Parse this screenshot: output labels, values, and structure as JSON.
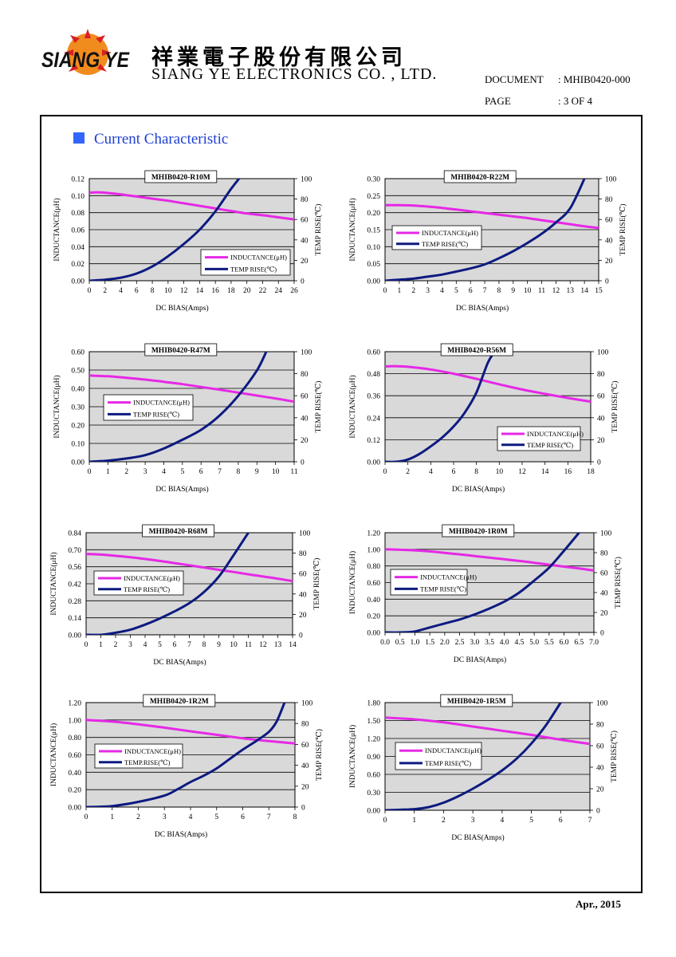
{
  "header": {
    "logo_text": "SIANG YE",
    "company_cn": "祥業電子股份有限公司",
    "company_en": "SIANG YE ELECTRONICS CO. , LTD.",
    "document_label": "DOCUMENT",
    "document_value": ": MHIB0420-000",
    "page_label": "PAGE",
    "page_value": ": 3 OF 4"
  },
  "section": {
    "title": "Current Characteristic"
  },
  "footer": {
    "date": "Apr., 2015"
  },
  "colors": {
    "inductance": "#e628e6",
    "temp_rise": "#0d1a80",
    "accent": "#3366ff"
  },
  "chart_data": [
    {
      "type": "line",
      "title": "MHIB0420-R10M",
      "xlabel": "DC BIAS(Amps)",
      "ylabel": "INDUCTANCE(μH)",
      "y2label": "TEMP RISE(℃)",
      "xlim": [
        0,
        26
      ],
      "ylim": [
        0,
        0.12
      ],
      "y2lim": [
        0,
        100
      ],
      "xticks": [
        "0",
        "2",
        "4",
        "6",
        "8",
        "10",
        "12",
        "14",
        "16",
        "18",
        "20",
        "22",
        "24",
        "26"
      ],
      "yticks": [
        "0.00",
        "0.02",
        "0.04",
        "0.06",
        "0.08",
        "0.10",
        "0.12"
      ],
      "y2ticks": [
        "0",
        "20",
        "40",
        "60",
        "80",
        "100"
      ],
      "legend": {
        "position": "bottom-right",
        "inductance": "INDUCTANCE(μH)",
        "temp": "TEMP RISE(℃)"
      },
      "series": [
        {
          "name": "INDUCTANCE(μH)",
          "axis": "y",
          "x": [
            0,
            1,
            2,
            4,
            6,
            8,
            10,
            12,
            14,
            16,
            18,
            20,
            22,
            24,
            26
          ],
          "values": [
            0.1035,
            0.104,
            0.1035,
            0.1015,
            0.099,
            0.0965,
            0.094,
            0.091,
            0.088,
            0.085,
            0.082,
            0.079,
            0.077,
            0.0745,
            0.072
          ]
        },
        {
          "name": "TEMP RISE(℃)",
          "axis": "y2",
          "x": [
            0,
            2,
            4,
            6,
            8,
            10,
            12,
            14,
            16,
            18,
            19
          ],
          "values": [
            0,
            1,
            3,
            7,
            14,
            24,
            36,
            50,
            68,
            90,
            100
          ]
        }
      ]
    },
    {
      "type": "line",
      "title": "MHIB0420-R22M",
      "xlabel": "DC BIAS(Amps)",
      "ylabel": "INDUCTANCE(μH)",
      "y2label": "TEMP RISE(℃)",
      "xlim": [
        0,
        15
      ],
      "ylim": [
        0,
        0.3
      ],
      "y2lim": [
        0,
        100
      ],
      "xticks": [
        "0",
        "1",
        "2",
        "3",
        "4",
        "5",
        "6",
        "7",
        "8",
        "9",
        "10",
        "11",
        "12",
        "13",
        "14",
        "15"
      ],
      "yticks": [
        "0.00",
        "0.05",
        "0.10",
        "0.15",
        "0.20",
        "0.25",
        "0.30"
      ],
      "y2ticks": [
        "0",
        "20",
        "40",
        "60",
        "80",
        "100"
      ],
      "legend": {
        "position": "middle-left",
        "inductance": "INDUCTANCE(μH)",
        "temp": "TEMP RISE(℃)"
      },
      "series": [
        {
          "name": "INDUCTANCE(μH)",
          "axis": "y",
          "x": [
            0,
            1,
            2,
            3,
            4,
            5,
            6,
            7,
            8,
            9,
            10,
            11,
            12,
            13,
            14,
            15
          ],
          "values": [
            0.222,
            0.222,
            0.221,
            0.218,
            0.214,
            0.209,
            0.204,
            0.199,
            0.194,
            0.189,
            0.184,
            0.178,
            0.172,
            0.166,
            0.16,
            0.155
          ]
        },
        {
          "name": "TEMP RISE(℃)",
          "axis": "y2",
          "x": [
            0,
            1,
            2,
            3,
            4,
            5,
            6,
            7,
            8,
            9,
            10,
            11,
            12,
            13,
            14
          ],
          "values": [
            0,
            1,
            2,
            4,
            6,
            9,
            12,
            16,
            22,
            29,
            37,
            46,
            57,
            71,
            100
          ]
        }
      ]
    },
    {
      "type": "line",
      "title": "MHIB0420-R47M",
      "xlabel": "DC BIAS(Amps)",
      "ylabel": "INDUCTANCE(μH)",
      "y2label": "TEMP RISE(℃)",
      "xlim": [
        0,
        11
      ],
      "ylim": [
        0,
        0.6
      ],
      "y2lim": [
        0,
        100
      ],
      "xticks": [
        "0",
        "1",
        "2",
        "3",
        "4",
        "5",
        "6",
        "7",
        "8",
        "9",
        "10",
        "11"
      ],
      "yticks": [
        "0.00",
        "0.10",
        "0.20",
        "0.30",
        "0.40",
        "0.50",
        "0.60"
      ],
      "y2ticks": [
        "0",
        "20",
        "40",
        "60",
        "80",
        "100"
      ],
      "legend": {
        "position": "middle-left",
        "inductance": "INDUCTANCE(μH)",
        "temp": "TEMP RISE(℃)"
      },
      "series": [
        {
          "name": "INDUCTANCE(μH)",
          "axis": "y",
          "x": [
            0,
            1,
            2,
            3,
            4,
            5,
            6,
            7,
            8,
            9,
            10,
            11
          ],
          "values": [
            0.47,
            0.466,
            0.458,
            0.448,
            0.436,
            0.423,
            0.408,
            0.393,
            0.377,
            0.361,
            0.345,
            0.328
          ]
        },
        {
          "name": "TEMP RISE(℃)",
          "axis": "y2",
          "x": [
            0,
            1,
            2,
            3,
            4,
            5,
            6,
            7,
            8,
            9,
            9.5
          ],
          "values": [
            0,
            1,
            3,
            6,
            12,
            20,
            29,
            42,
            60,
            83,
            100
          ]
        }
      ]
    },
    {
      "type": "line",
      "title": "MHIB0420-R56M",
      "xlabel": "DC BIAS(Amps)",
      "ylabel": "INDUCTANCE(μH)",
      "y2label": "TEMP RISE(℃)",
      "xlim": [
        0,
        18
      ],
      "ylim": [
        0,
        0.6
      ],
      "y2lim": [
        0,
        100
      ],
      "xticks": [
        "0",
        "2",
        "4",
        "6",
        "8",
        "10",
        "12",
        "14",
        "16",
        "18"
      ],
      "yticks": [
        "0.00",
        "0.12",
        "0.24",
        "0.36",
        "0.48",
        "0.60"
      ],
      "y2ticks": [
        "0",
        "20",
        "40",
        "60",
        "80",
        "100"
      ],
      "legend": {
        "position": "bottom-right",
        "inductance": "INDUCTANCE(μH)",
        "temp": "TEMP RISE(℃)"
      },
      "series": [
        {
          "name": "INDUCTANCE(μH)",
          "axis": "y",
          "x": [
            0,
            1,
            2,
            4,
            6,
            8,
            10,
            12,
            14,
            16,
            18
          ],
          "values": [
            0.52,
            0.521,
            0.518,
            0.503,
            0.48,
            0.452,
            0.422,
            0.394,
            0.37,
            0.348,
            0.328
          ]
        },
        {
          "name": "TEMP RISE(℃)",
          "axis": "y2",
          "x": [
            0,
            1,
            2,
            3,
            4,
            5,
            6,
            7,
            8,
            9,
            9.6
          ],
          "values": [
            0,
            0,
            2,
            7,
            14,
            22,
            32,
            45,
            63,
            90,
            100
          ]
        }
      ]
    },
    {
      "type": "line",
      "title": "MHIB0420-R68M",
      "xlabel": "DC BIAS(Amps)",
      "ylabel": "INDUCTANCE(μH)",
      "y2label": "TEMP RISE(℃)",
      "xlim": [
        0,
        14
      ],
      "ylim": [
        0,
        0.84
      ],
      "y2lim": [
        0,
        100
      ],
      "xticks": [
        "0",
        "1",
        "2",
        "3",
        "4",
        "5",
        "6",
        "7",
        "8",
        "9",
        "10",
        "11",
        "12",
        "13",
        "14"
      ],
      "yticks": [
        "0.00",
        "0.14",
        "0.28",
        "0.42",
        "0.56",
        "0.70",
        "0.84"
      ],
      "y2ticks": [
        "0",
        "20",
        "40",
        "60",
        "80",
        "100"
      ],
      "legend": {
        "position": "middle-left",
        "inductance": "INDUCTANCE(μH)",
        "temp": "TEMP RISE(℃)"
      },
      "series": [
        {
          "name": "INDUCTANCE(μH)",
          "axis": "y",
          "x": [
            0,
            1,
            2,
            3,
            4,
            5,
            6,
            7,
            8,
            9,
            10,
            11,
            12,
            13,
            14
          ],
          "values": [
            0.665,
            0.66,
            0.65,
            0.638,
            0.624,
            0.608,
            0.59,
            0.572,
            0.553,
            0.535,
            0.517,
            0.498,
            0.48,
            0.462,
            0.442
          ]
        },
        {
          "name": "TEMP RISE(℃)",
          "axis": "y2",
          "x": [
            0,
            1,
            2,
            3,
            4,
            5,
            6,
            7,
            8,
            9,
            10,
            11
          ],
          "values": [
            0,
            0,
            2,
            5,
            10,
            16,
            23,
            31,
            42,
            57,
            78,
            100
          ]
        }
      ]
    },
    {
      "type": "line",
      "title": "MHIB0420-1R0M",
      "xlabel": "DC BIAS(Amps)",
      "ylabel": "INDUCTANCE(μH)",
      "y2label": "TEMP RISE(℃)",
      "xlim": [
        0,
        7
      ],
      "ylim": [
        0,
        1.2
      ],
      "y2lim": [
        0,
        100
      ],
      "xticks": [
        "0.0",
        "0.5",
        "1.0",
        "1.5",
        "2.0",
        "2.5",
        "3.0",
        "3.5",
        "4.0",
        "4.5",
        "5.0",
        "5.5",
        "6.0",
        "6.5",
        "7.0"
      ],
      "yticks": [
        "0.00",
        "0.20",
        "0.40",
        "0.60",
        "0.80",
        "1.00",
        "1.20"
      ],
      "y2ticks": [
        "0",
        "20",
        "40",
        "60",
        "80",
        "100"
      ],
      "legend": {
        "position": "middle-left",
        "inductance": "INDUCTANCE(μH)",
        "temp": "TEMP RISE(℃)"
      },
      "series": [
        {
          "name": "INDUCTANCE(μH)",
          "axis": "y",
          "x": [
            0,
            0.5,
            1,
            1.5,
            2,
            2.5,
            3,
            3.5,
            4,
            4.5,
            5,
            5.5,
            6,
            6.5,
            7
          ],
          "values": [
            1.0,
            0.995,
            0.988,
            0.975,
            0.958,
            0.94,
            0.92,
            0.9,
            0.88,
            0.86,
            0.838,
            0.815,
            0.792,
            0.77,
            0.745
          ]
        },
        {
          "name": "TEMP RISE(℃)",
          "axis": "y2",
          "x": [
            0,
            0.5,
            1,
            1.5,
            2,
            2.5,
            3,
            3.5,
            4,
            4.5,
            5,
            5.5,
            6,
            6.5
          ],
          "values": [
            0,
            0,
            1,
            5,
            9,
            13,
            18,
            24,
            31,
            40,
            52,
            65,
            82,
            100
          ]
        }
      ]
    },
    {
      "type": "line",
      "title": "MHIB0420-1R2M",
      "xlabel": "DC BIAS(Amps)",
      "ylabel": "INDUCTANCE(μH)",
      "y2label": "TEMP RISE(℃)",
      "xlim": [
        0,
        8
      ],
      "ylim": [
        0,
        1.2
      ],
      "y2lim": [
        0,
        100
      ],
      "xticks": [
        "0",
        "1",
        "2",
        "3",
        "4",
        "5",
        "6",
        "7",
        "8"
      ],
      "yticks": [
        "0.00",
        "0.20",
        "0.40",
        "0.60",
        "0.80",
        "1.00",
        "1.20"
      ],
      "y2ticks": [
        "0",
        "20",
        "40",
        "60",
        "80",
        "100"
      ],
      "legend": {
        "position": "middle-left",
        "inductance": "INDUCTANCE(μH)",
        "temp": "TEMP.RISE(℃)"
      },
      "series": [
        {
          "name": "INDUCTANCE(μH)",
          "axis": "y",
          "x": [
            0,
            1,
            2,
            3,
            4,
            5,
            6,
            7,
            8
          ],
          "values": [
            1.0,
            0.982,
            0.95,
            0.912,
            0.87,
            0.83,
            0.79,
            0.758,
            0.73
          ]
        },
        {
          "name": "TEMP.RISE(℃)",
          "axis": "y2",
          "x": [
            0,
            1,
            2,
            3,
            3.5,
            4,
            4.5,
            5,
            5.5,
            6,
            6.5,
            7,
            7.3,
            7.6
          ],
          "values": [
            0,
            1,
            5,
            11,
            17,
            24,
            30,
            37,
            46,
            55,
            63,
            72,
            82,
            100
          ]
        }
      ]
    },
    {
      "type": "line",
      "title": "MHIB0420-1R5M",
      "xlabel": "DC BIAS(Amps)",
      "ylabel": "INDUCTANCE(μH)",
      "y2label": "TEMP RISE(℃)",
      "xlim": [
        0,
        7
      ],
      "ylim": [
        0,
        1.8
      ],
      "y2lim": [
        0,
        100
      ],
      "xticks": [
        "0",
        "1",
        "2",
        "3",
        "4",
        "5",
        "6",
        "7"
      ],
      "yticks": [
        "0.00",
        "0.30",
        "0.60",
        "0.90",
        "1.20",
        "1.50",
        "1.80"
      ],
      "y2ticks": [
        "0",
        "20",
        "40",
        "60",
        "80",
        "100"
      ],
      "legend": {
        "position": "middle-left",
        "inductance": "INDUCTANCE(μH)",
        "temp": "TEMP RISE(℃)"
      },
      "series": [
        {
          "name": "INDUCTANCE(μH)",
          "axis": "y",
          "x": [
            0,
            1,
            2,
            3,
            4,
            5,
            6,
            7
          ],
          "values": [
            1.55,
            1.52,
            1.47,
            1.4,
            1.33,
            1.26,
            1.18,
            1.11
          ]
        },
        {
          "name": "TEMP RISE(℃)",
          "axis": "y2",
          "x": [
            0,
            1,
            1.5,
            2,
            2.5,
            3,
            3.5,
            4,
            4.5,
            5,
            5.5,
            6
          ],
          "values": [
            0,
            1,
            3,
            7,
            13,
            20,
            28,
            37,
            48,
            62,
            79,
            100
          ]
        }
      ]
    }
  ]
}
